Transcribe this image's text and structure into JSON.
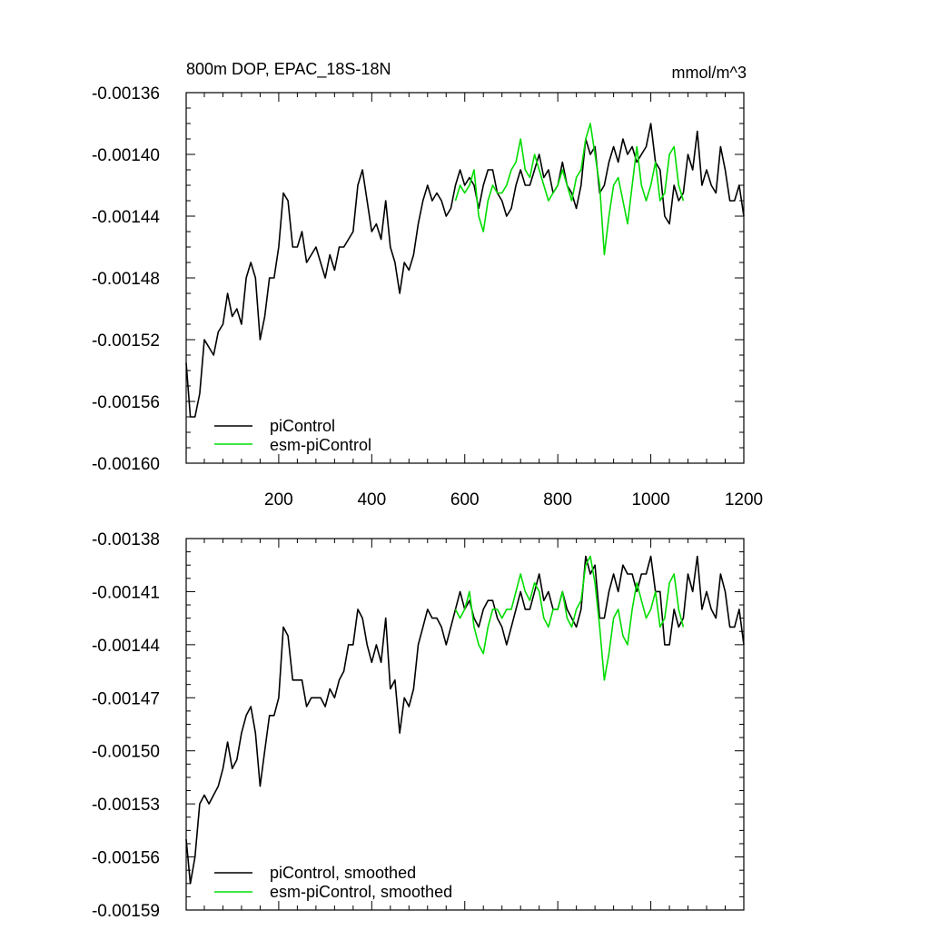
{
  "colors": {
    "picontrol": "#000000",
    "esm_picontrol": "#00dd00"
  },
  "chart_data": [
    {
      "type": "line",
      "title": "800m DOP, EPAC_18S-18N",
      "units": "mmol/m^3",
      "xlim": [
        1,
        1200
      ],
      "ylim": [
        -0.0016,
        -0.00136
      ],
      "x_ticks": [
        200,
        400,
        600,
        800,
        1000,
        1200
      ],
      "x_tick_labels": [
        "200",
        "400",
        "600",
        "800",
        "1000",
        "1200"
      ],
      "y_ticks": [
        -0.0016,
        -0.00156,
        -0.00152,
        -0.00148,
        -0.00144,
        -0.0014,
        -0.00136
      ],
      "y_tick_labels": [
        "-0.00160",
        "-0.00156",
        "-0.00152",
        "-0.00148",
        "-0.00144",
        "-0.00140",
        "-0.00136"
      ],
      "legend": [
        "piControl",
        "esm-piControl"
      ],
      "legend_position": "bottom-left",
      "series": [
        {
          "name": "piControl",
          "x": [
            1,
            10,
            20,
            30,
            40,
            50,
            60,
            70,
            80,
            90,
            100,
            110,
            120,
            130,
            140,
            150,
            160,
            170,
            180,
            190,
            200,
            210,
            220,
            230,
            240,
            250,
            260,
            270,
            280,
            290,
            300,
            310,
            320,
            330,
            340,
            350,
            360,
            370,
            380,
            390,
            400,
            410,
            420,
            430,
            440,
            450,
            460,
            470,
            480,
            490,
            500,
            510,
            520,
            530,
            540,
            550,
            560,
            570,
            580,
            590,
            600,
            610,
            620,
            630,
            640,
            650,
            660,
            670,
            680,
            690,
            700,
            710,
            720,
            730,
            740,
            750,
            760,
            770,
            780,
            790,
            800,
            810,
            820,
            830,
            840,
            850,
            860,
            870,
            880,
            890,
            900,
            910,
            920,
            930,
            940,
            950,
            960,
            970,
            980,
            990,
            1000,
            1010,
            1020,
            1030,
            1040,
            1050,
            1060,
            1070,
            1080,
            1090,
            1100,
            1110,
            1120,
            1130,
            1140,
            1150,
            1160,
            1170,
            1180,
            1190,
            1200
          ],
          "values": [
            -0.001535,
            -0.00157,
            -0.00157,
            -0.001555,
            -0.00152,
            -0.001525,
            -0.00153,
            -0.001515,
            -0.00151,
            -0.00149,
            -0.001505,
            -0.0015,
            -0.00151,
            -0.00148,
            -0.00147,
            -0.00148,
            -0.00152,
            -0.001505,
            -0.00148,
            -0.00148,
            -0.00146,
            -0.001425,
            -0.00143,
            -0.00146,
            -0.00146,
            -0.00145,
            -0.00147,
            -0.001465,
            -0.00146,
            -0.00147,
            -0.00148,
            -0.001465,
            -0.001475,
            -0.00146,
            -0.00146,
            -0.001455,
            -0.00145,
            -0.00142,
            -0.00141,
            -0.00143,
            -0.00145,
            -0.001445,
            -0.001455,
            -0.00143,
            -0.00146,
            -0.00147,
            -0.00149,
            -0.00147,
            -0.001475,
            -0.001465,
            -0.001445,
            -0.00143,
            -0.00142,
            -0.00143,
            -0.001425,
            -0.00143,
            -0.00144,
            -0.001435,
            -0.00142,
            -0.00141,
            -0.00142,
            -0.001415,
            -0.00142,
            -0.001435,
            -0.00142,
            -0.00141,
            -0.00141,
            -0.001425,
            -0.00143,
            -0.00144,
            -0.001435,
            -0.00142,
            -0.00141,
            -0.00142,
            -0.00142,
            -0.00141,
            -0.0014,
            -0.001415,
            -0.00141,
            -0.001425,
            -0.00142,
            -0.001405,
            -0.00142,
            -0.001425,
            -0.001435,
            -0.00142,
            -0.00139,
            -0.0014,
            -0.001395,
            -0.001425,
            -0.00142,
            -0.001405,
            -0.001395,
            -0.001405,
            -0.00139,
            -0.0014,
            -0.001395,
            -0.001405,
            -0.0014,
            -0.001395,
            -0.00138,
            -0.001405,
            -0.00141,
            -0.00144,
            -0.001445,
            -0.00142,
            -0.00143,
            -0.001425,
            -0.0014,
            -0.00141,
            -0.001385,
            -0.00142,
            -0.00141,
            -0.00142,
            -0.001425,
            -0.001395,
            -0.00141,
            -0.00143,
            -0.00143,
            -0.00142,
            -0.00144
          ]
        },
        {
          "name": "esm-piControl",
          "x": [
            580,
            590,
            600,
            610,
            620,
            630,
            640,
            650,
            660,
            670,
            680,
            690,
            700,
            710,
            720,
            730,
            740,
            750,
            760,
            770,
            780,
            790,
            800,
            810,
            820,
            830,
            840,
            850,
            860,
            870,
            880,
            890,
            900,
            910,
            920,
            930,
            940,
            950,
            960,
            970,
            980,
            990,
            1000,
            1010,
            1020,
            1030,
            1040,
            1050,
            1060,
            1070
          ],
          "values": [
            -0.00143,
            -0.00142,
            -0.001425,
            -0.00142,
            -0.00141,
            -0.00144,
            -0.00145,
            -0.00143,
            -0.00142,
            -0.001425,
            -0.001425,
            -0.00142,
            -0.00141,
            -0.001405,
            -0.00139,
            -0.00141,
            -0.001415,
            -0.0014,
            -0.00141,
            -0.00142,
            -0.00143,
            -0.001425,
            -0.00142,
            -0.00141,
            -0.00142,
            -0.00143,
            -0.001415,
            -0.00141,
            -0.00139,
            -0.00138,
            -0.0014,
            -0.00142,
            -0.001465,
            -0.00144,
            -0.00142,
            -0.001415,
            -0.00143,
            -0.001445,
            -0.00142,
            -0.001395,
            -0.00142,
            -0.00143,
            -0.00142,
            -0.001405,
            -0.00143,
            -0.001425,
            -0.0014,
            -0.001395,
            -0.00142,
            -0.00143
          ]
        }
      ]
    },
    {
      "type": "line",
      "xlim": [
        1,
        1200
      ],
      "ylim": [
        -0.00159,
        -0.00138
      ],
      "x_ticks": [
        200,
        400,
        600,
        800,
        1000,
        1200
      ],
      "y_ticks": [
        -0.00159,
        -0.00156,
        -0.00153,
        -0.0015,
        -0.00147,
        -0.00144,
        -0.00141,
        -0.00138
      ],
      "y_tick_labels": [
        "-0.00159",
        "-0.00156",
        "-0.00153",
        "-0.00150",
        "-0.00147",
        "-0.00144",
        "-0.00141",
        "-0.00138"
      ],
      "legend": [
        "piControl, smoothed",
        "esm-piControl, smoothed"
      ],
      "legend_position": "bottom-left",
      "series": [
        {
          "name": "piControl, smoothed",
          "x": [
            1,
            10,
            20,
            30,
            40,
            50,
            60,
            70,
            80,
            90,
            100,
            110,
            120,
            130,
            140,
            150,
            160,
            170,
            180,
            190,
            200,
            210,
            220,
            230,
            240,
            250,
            260,
            270,
            280,
            290,
            300,
            310,
            320,
            330,
            340,
            350,
            360,
            370,
            380,
            390,
            400,
            410,
            420,
            430,
            440,
            450,
            460,
            470,
            480,
            490,
            500,
            510,
            520,
            530,
            540,
            550,
            560,
            570,
            580,
            590,
            600,
            610,
            620,
            630,
            640,
            650,
            660,
            670,
            680,
            690,
            700,
            710,
            720,
            730,
            740,
            750,
            760,
            770,
            780,
            790,
            800,
            810,
            820,
            830,
            840,
            850,
            860,
            870,
            880,
            890,
            900,
            910,
            920,
            930,
            940,
            950,
            960,
            970,
            980,
            990,
            1000,
            1010,
            1020,
            1030,
            1040,
            1050,
            1060,
            1070,
            1080,
            1090,
            1100,
            1110,
            1120,
            1130,
            1140,
            1150,
            1160,
            1170,
            1180,
            1190,
            1200
          ],
          "values": [
            -0.00155,
            -0.001575,
            -0.00156,
            -0.00153,
            -0.001525,
            -0.00153,
            -0.001525,
            -0.00152,
            -0.00151,
            -0.001495,
            -0.00151,
            -0.001505,
            -0.00149,
            -0.00148,
            -0.001475,
            -0.00149,
            -0.00152,
            -0.0015,
            -0.00148,
            -0.00148,
            -0.00147,
            -0.00143,
            -0.001435,
            -0.00146,
            -0.00146,
            -0.00146,
            -0.001475,
            -0.00147,
            -0.00147,
            -0.00147,
            -0.001475,
            -0.001465,
            -0.00147,
            -0.00146,
            -0.001455,
            -0.00144,
            -0.00144,
            -0.00142,
            -0.001425,
            -0.00144,
            -0.00145,
            -0.00144,
            -0.00145,
            -0.001425,
            -0.001465,
            -0.00146,
            -0.00149,
            -0.00147,
            -0.001475,
            -0.001465,
            -0.00144,
            -0.00143,
            -0.00142,
            -0.001425,
            -0.001425,
            -0.00143,
            -0.00144,
            -0.00143,
            -0.00142,
            -0.00141,
            -0.00142,
            -0.001415,
            -0.001425,
            -0.00143,
            -0.00142,
            -0.001415,
            -0.001415,
            -0.001425,
            -0.00143,
            -0.00144,
            -0.00143,
            -0.00142,
            -0.00141,
            -0.00142,
            -0.00142,
            -0.00141,
            -0.0014,
            -0.001415,
            -0.00141,
            -0.00142,
            -0.00142,
            -0.00141,
            -0.00142,
            -0.001425,
            -0.00143,
            -0.00142,
            -0.00139,
            -0.0014,
            -0.001395,
            -0.001425,
            -0.001425,
            -0.00141,
            -0.0014,
            -0.00141,
            -0.001395,
            -0.0014,
            -0.0014,
            -0.00141,
            -0.0014,
            -0.0014,
            -0.00139,
            -0.00141,
            -0.00141,
            -0.00144,
            -0.00144,
            -0.00142,
            -0.00143,
            -0.001425,
            -0.0014,
            -0.00141,
            -0.00139,
            -0.00142,
            -0.00141,
            -0.00142,
            -0.001425,
            -0.0014,
            -0.00141,
            -0.00143,
            -0.00143,
            -0.00142,
            -0.00144
          ]
        },
        {
          "name": "esm-piControl, smoothed",
          "x": [
            580,
            590,
            600,
            610,
            620,
            630,
            640,
            650,
            660,
            670,
            680,
            690,
            700,
            710,
            720,
            730,
            740,
            750,
            760,
            770,
            780,
            790,
            800,
            810,
            820,
            830,
            840,
            850,
            860,
            870,
            880,
            890,
            900,
            910,
            920,
            930,
            940,
            950,
            960,
            970,
            980,
            990,
            1000,
            1010,
            1020,
            1030,
            1040,
            1050,
            1060,
            1070
          ],
          "values": [
            -0.00142,
            -0.001425,
            -0.00142,
            -0.00141,
            -0.00143,
            -0.00144,
            -0.001445,
            -0.00143,
            -0.00142,
            -0.00142,
            -0.001425,
            -0.00142,
            -0.00142,
            -0.00141,
            -0.0014,
            -0.00141,
            -0.001415,
            -0.001405,
            -0.00141,
            -0.001425,
            -0.00143,
            -0.00142,
            -0.00142,
            -0.00141,
            -0.001425,
            -0.00143,
            -0.00142,
            -0.001415,
            -0.001395,
            -0.00139,
            -0.001405,
            -0.00143,
            -0.00146,
            -0.001445,
            -0.001425,
            -0.00142,
            -0.001435,
            -0.00144,
            -0.00142,
            -0.001405,
            -0.001415,
            -0.001425,
            -0.00142,
            -0.00141,
            -0.00143,
            -0.001425,
            -0.001405,
            -0.0014,
            -0.00142,
            -0.00143
          ]
        }
      ]
    }
  ]
}
